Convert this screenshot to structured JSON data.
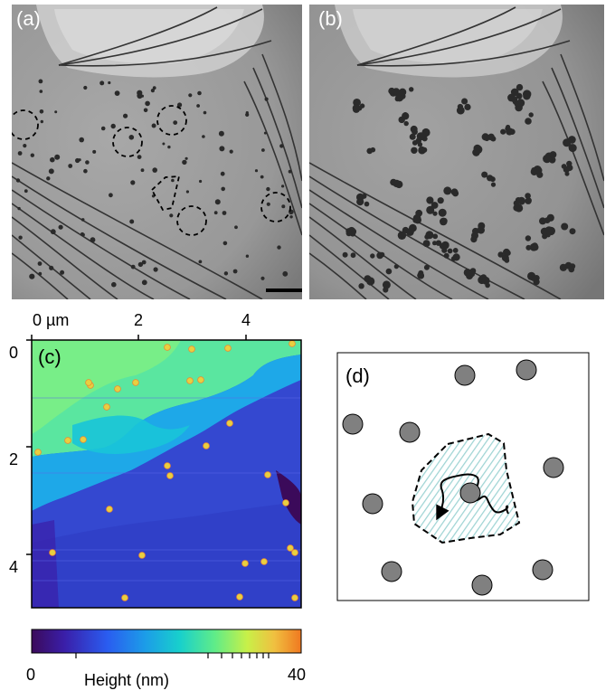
{
  "panels": {
    "a": {
      "label": "(a)"
    },
    "b": {
      "label": "(b)"
    },
    "c": {
      "label": "(c)",
      "x_tick_labels": [
        "0 µm",
        "2",
        "4"
      ],
      "y_tick_labels": [
        "0",
        "2",
        "4"
      ]
    },
    "d": {
      "label": "(d)"
    }
  },
  "colorbar": {
    "min_label": "0",
    "max_label": "40",
    "title": "Height (nm)"
  },
  "colors": {
    "particle_fill": "#808080",
    "hatch": "#9fd4d4",
    "colormap": [
      "#3b0a5a",
      "#3c28c8",
      "#2a78f0",
      "#18c4d8",
      "#58e890",
      "#b8f050",
      "#f0c040",
      "#f07820"
    ]
  }
}
